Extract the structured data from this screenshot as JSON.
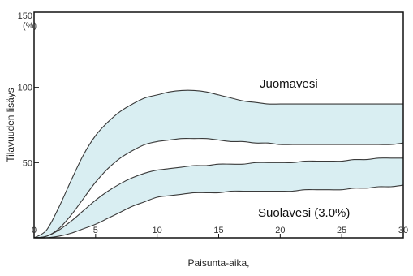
{
  "chart_data": {
    "type": "area",
    "title": "",
    "xlabel": "Paisunta-aika,",
    "ylabel": "Tilavuuden lisäys",
    "y_unit_label": "(%)",
    "xlim": [
      0,
      30
    ],
    "ylim": [
      0,
      150
    ],
    "x_ticks": [
      "0",
      "5",
      "10",
      "15",
      "20",
      "25",
      "30"
    ],
    "y_ticks": [
      "50",
      "100",
      "150"
    ],
    "grid": false,
    "legend": "none",
    "colors": {
      "band_fill": "#d9eef2",
      "outline": "#3a3a3a",
      "frame": "#111111",
      "background": "#ffffff"
    },
    "series": [
      {
        "name": "Juomavesi",
        "label": "Juomavesi",
        "fill": "band",
        "x": [
          0,
          1,
          2,
          3,
          4,
          5,
          6,
          7,
          8,
          9,
          10,
          11,
          12,
          13,
          14,
          15,
          16,
          17,
          18,
          19,
          20,
          21,
          22,
          23,
          24,
          25,
          26,
          27,
          28,
          29,
          30
        ],
        "upper": [
          0,
          5,
          20,
          38,
          55,
          68,
          77,
          84,
          89,
          93,
          95,
          97,
          98,
          98,
          97,
          95,
          93,
          91,
          90,
          89,
          89,
          89,
          89,
          89,
          89,
          89,
          89,
          89,
          89,
          89,
          89
        ],
        "lower": [
          0,
          1,
          6,
          15,
          26,
          37,
          46,
          53,
          58,
          62,
          64,
          65,
          66,
          66,
          66,
          65,
          64,
          64,
          63,
          63,
          62,
          62,
          62,
          62,
          62,
          62,
          62,
          62,
          62,
          62,
          63
        ]
      },
      {
        "name": "Suolavesi (3.0%)",
        "label": "Suolavesi (3.0%)",
        "fill": "band",
        "x": [
          0,
          1,
          2,
          3,
          4,
          5,
          6,
          7,
          8,
          9,
          10,
          11,
          12,
          13,
          14,
          15,
          16,
          17,
          18,
          19,
          20,
          21,
          22,
          23,
          24,
          25,
          26,
          27,
          28,
          29,
          30
        ],
        "upper": [
          0,
          1,
          5,
          11,
          18,
          25,
          31,
          36,
          40,
          43,
          45,
          46,
          47,
          48,
          48,
          49,
          49,
          49,
          50,
          50,
          50,
          50,
          51,
          51,
          51,
          51,
          52,
          52,
          53,
          53,
          53
        ],
        "lower": [
          0,
          0,
          1,
          3,
          6,
          9,
          13,
          17,
          21,
          24,
          27,
          28,
          29,
          30,
          30,
          30,
          31,
          31,
          31,
          31,
          31,
          31,
          32,
          32,
          32,
          32,
          33,
          33,
          34,
          34,
          35
        ]
      }
    ]
  }
}
